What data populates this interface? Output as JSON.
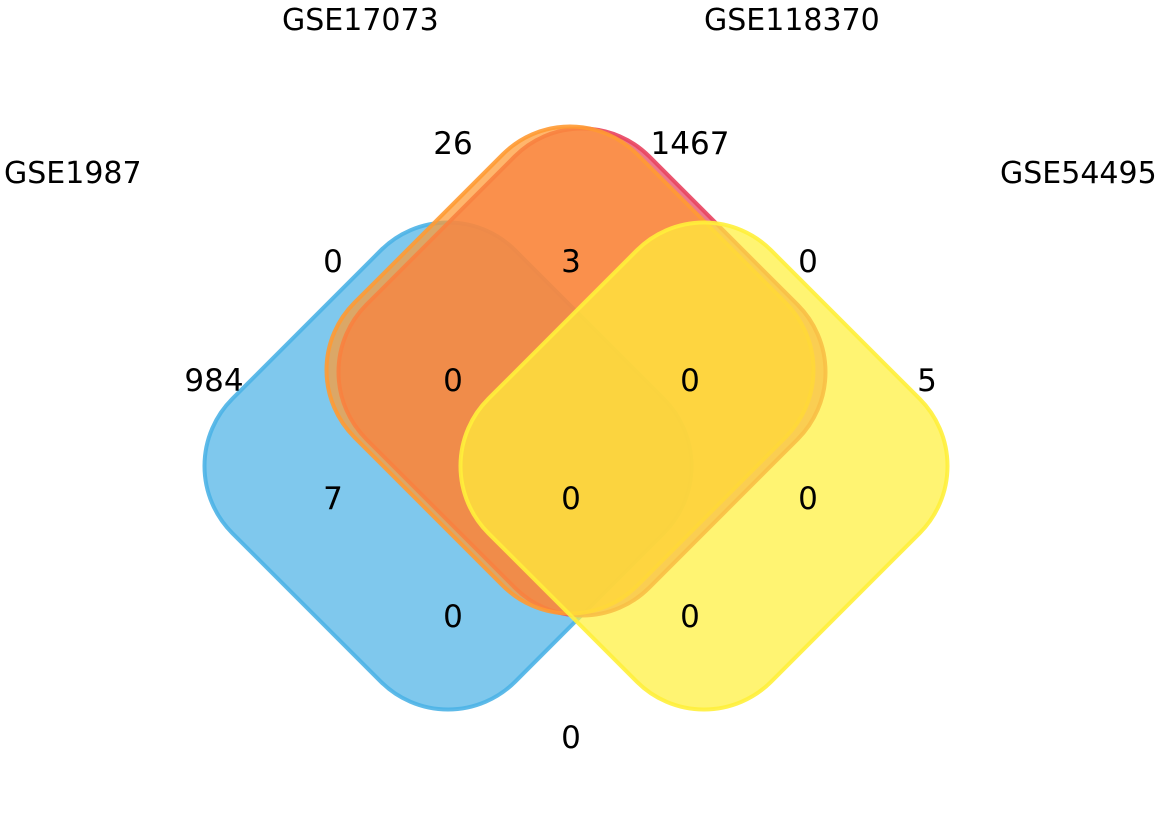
{
  "sets": [
    {
      "name": "GSE1987",
      "color": "#4db3e6"
    },
    {
      "name": "GSE17073",
      "color": "#e8445f"
    },
    {
      "name": "GSE118370",
      "color": "#ff9a33"
    },
    {
      "name": "GSE54495",
      "color": "#fff03b"
    }
  ],
  "regions": {
    "only_gse1987": "984",
    "only_gse17073": "26",
    "only_gse118370": "1467",
    "only_gse54495": "5",
    "gse1987_gse17073": "0",
    "gse17073_gse118370": "3",
    "gse118370_gse54495": "0",
    "gse1987_gse17073_gse118370": "0",
    "gse17073_gse118370_gse54495": "0",
    "gse1987_gse118370": "7",
    "all_four": "0",
    "gse17073_gse54495": "0",
    "gse1987_gse118370_gse54495": "0",
    "gse1987_gse17073_gse54495": "0",
    "gse1987_gse54495": "0"
  }
}
